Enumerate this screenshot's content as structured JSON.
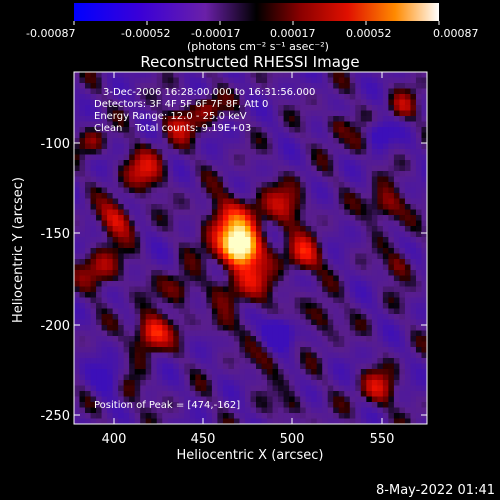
{
  "colorbar": {
    "tick_labels": [
      "-0.00087",
      "-0.00052",
      "-0.00017",
      "0.00017",
      "0.00052",
      "0.00087"
    ],
    "unit_label": "(photons cm⁻² s⁻¹ asec⁻²)"
  },
  "title": "Reconstructed RHESSI Image",
  "annotations": {
    "time_range": "3-Dec-2006 16:28:00.000 to 16:31:56.000",
    "detectors": "Detectors: 3F 4F 5F 6F 7F 8F, Att 0",
    "energy_range": "Energy Range: 12.0 - 25.0 keV",
    "clean": "Clean    Total counts: 9.19E+03",
    "peak_position": "Position of Peak = [474,-162]"
  },
  "x_axis": {
    "label": "Heliocentric X (arcsec)",
    "ticks": [
      "400",
      "450",
      "500",
      "550"
    ]
  },
  "y_axis": {
    "label": "Heliocentric Y (arcsec)",
    "ticks": [
      "-100",
      "-150",
      "-200",
      "-250"
    ]
  },
  "footer_timestamp": "8-May-2022 01:41"
}
